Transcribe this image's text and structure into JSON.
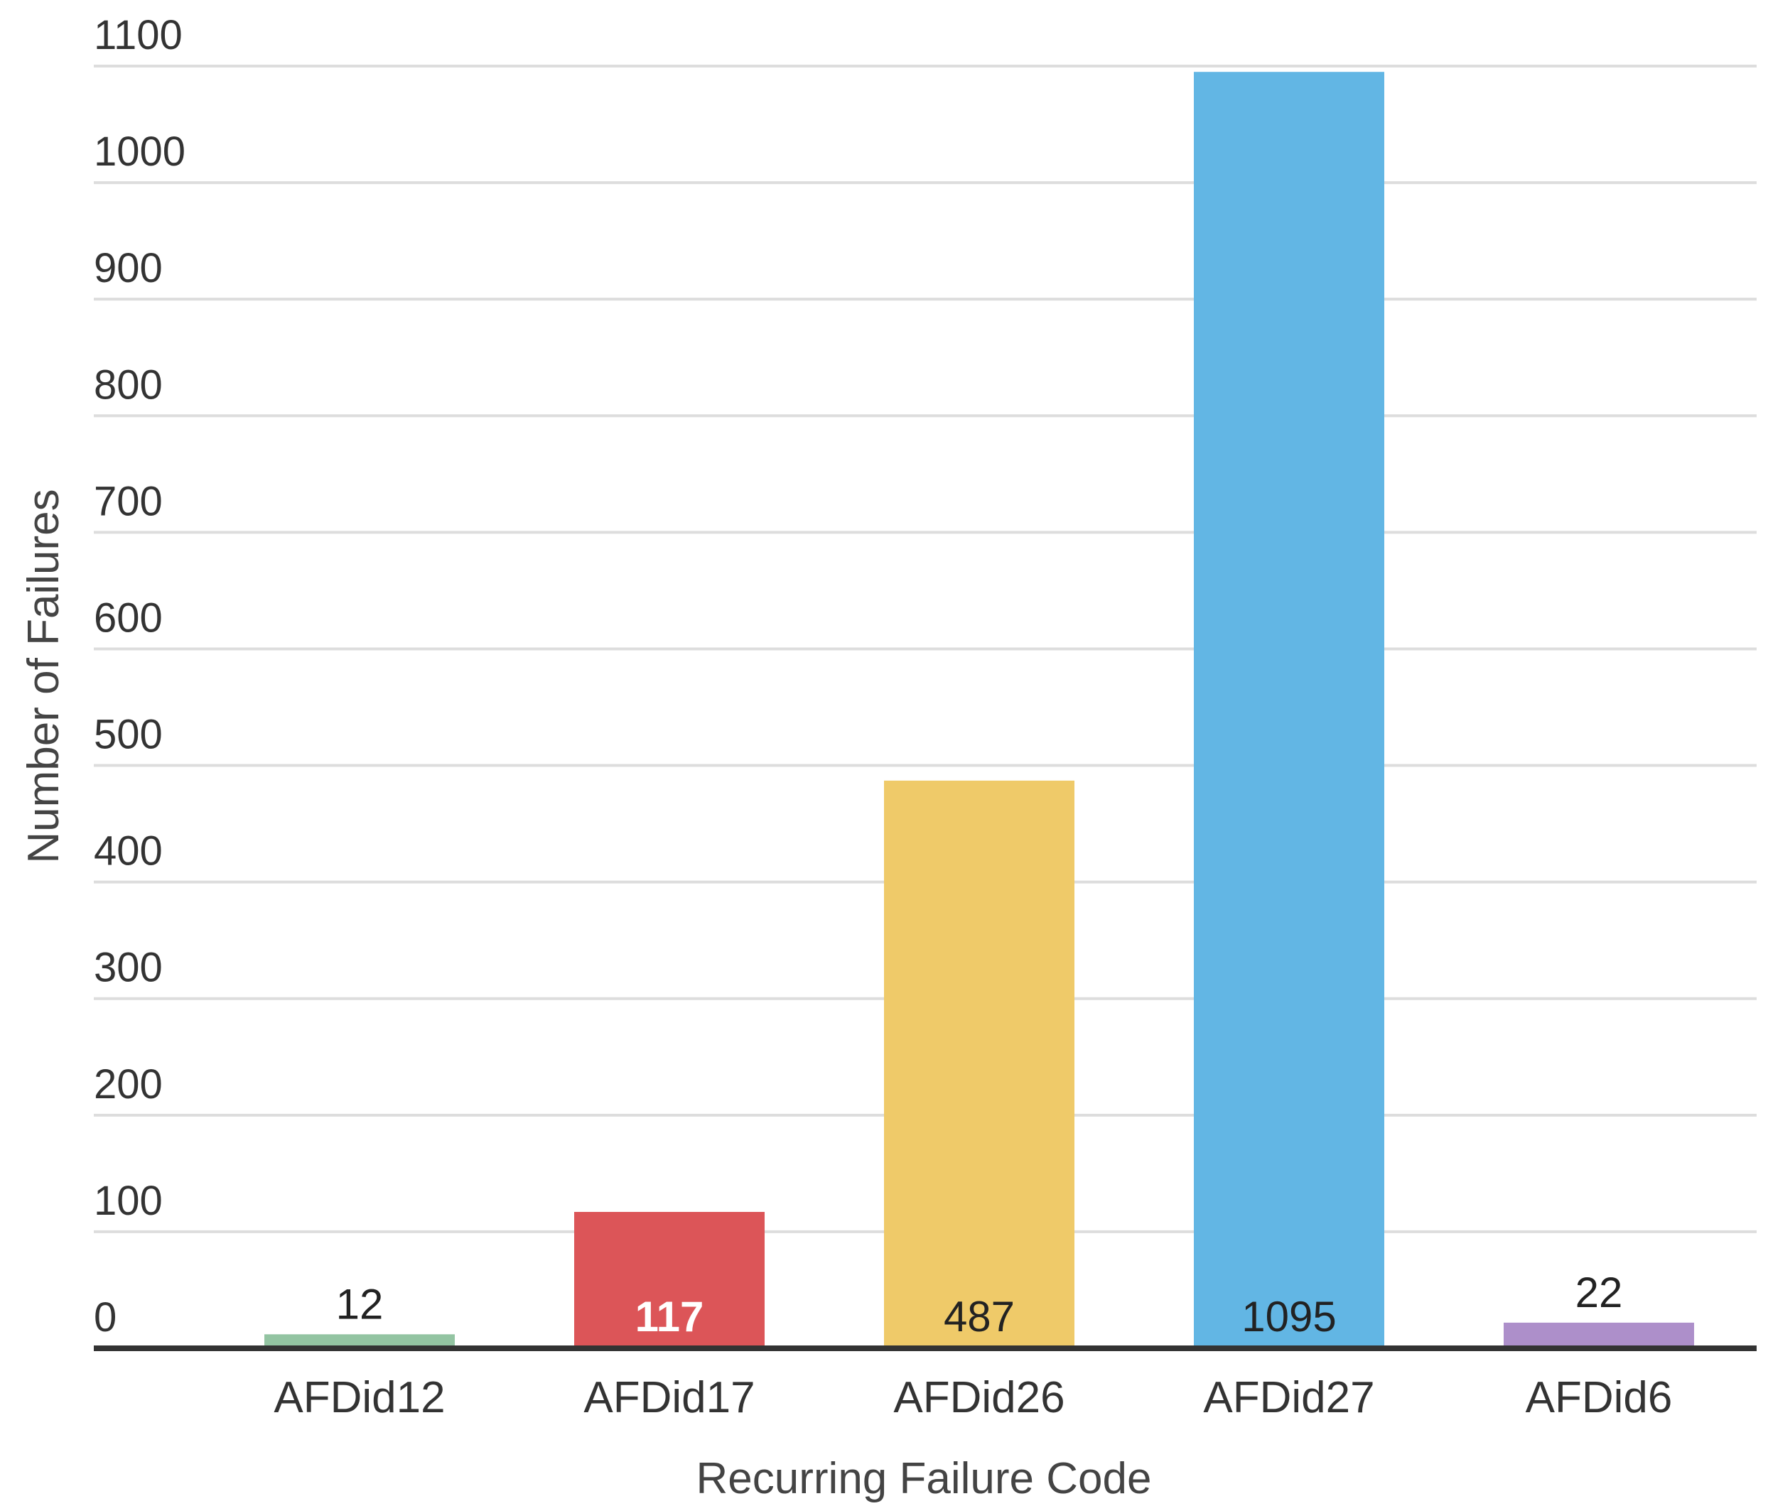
{
  "chart_data": {
    "type": "bar",
    "categories": [
      "AFDid12",
      "AFDid17",
      "AFDid26",
      "AFDid27",
      "AFDid6"
    ],
    "values": [
      12,
      117,
      487,
      1095,
      22
    ],
    "data_labels": [
      "12",
      "117",
      "487",
      "1095",
      "22"
    ],
    "colors": [
      "#93c4a2",
      "#dc5558",
      "#efca69",
      "#62b6e4",
      "#ad8fca"
    ],
    "label_colors": [
      "#222222",
      "#ffffff",
      "#222222",
      "#222222",
      "#222222"
    ],
    "xlabel": "Recurring Failure Code",
    "ylabel": "Number of Failures",
    "ylim": [
      0,
      1100
    ],
    "yticks": [
      0,
      100,
      200,
      300,
      400,
      500,
      600,
      700,
      800,
      900,
      1000,
      1100
    ],
    "ytick_labels": [
      "0",
      "100",
      "200",
      "300",
      "400",
      "500",
      "600",
      "700",
      "800",
      "900",
      "1000",
      "1100"
    ],
    "grid": true,
    "gridline_color": "#dddddd",
    "baseline_color": "#333333"
  }
}
